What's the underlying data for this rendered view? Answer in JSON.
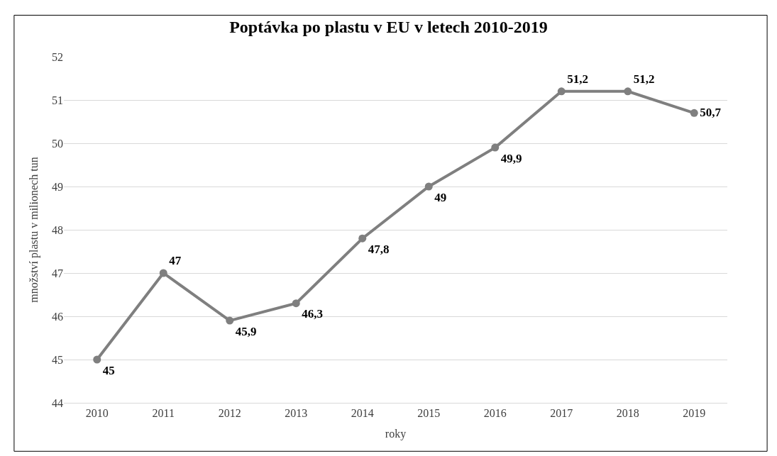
{
  "chart_data": {
    "type": "line",
    "title": "Poptávka po plastu v EU v letech 2010-2019",
    "xlabel": "roky",
    "ylabel": "množství plastu v milionech tun",
    "categories": [
      "2010",
      "2011",
      "2012",
      "2013",
      "2014",
      "2015",
      "2016",
      "2017",
      "2018",
      "2019"
    ],
    "series": [
      {
        "color": "#7f7f7f",
        "values": [
          45,
          47,
          45.9,
          46.3,
          47.8,
          49,
          49.9,
          51.2,
          51.2,
          50.7
        ],
        "value_labels": [
          "45",
          "47",
          "45,9",
          "46,3",
          "47,8",
          "49",
          "49,9",
          "51,2",
          "51,2",
          "50,7"
        ]
      }
    ],
    "ylim": [
      44,
      52
    ],
    "yticks": [
      44,
      45,
      46,
      47,
      48,
      49,
      50,
      51,
      52
    ],
    "grid": "y",
    "marker": "circle",
    "line_style": "solid"
  }
}
